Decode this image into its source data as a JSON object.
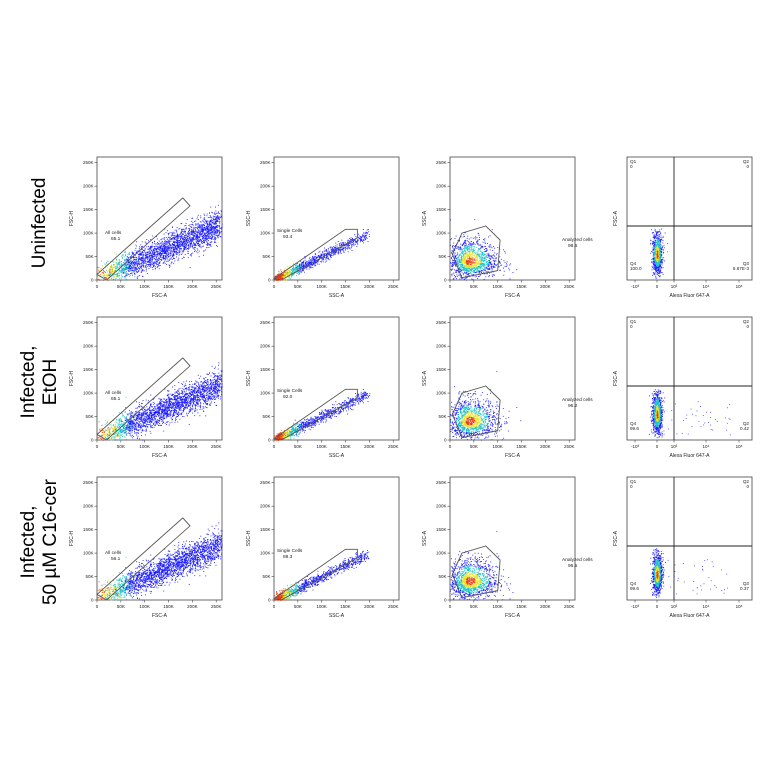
{
  "rows": [
    {
      "label_lines": [
        "Uninfected"
      ]
    },
    {
      "label_lines": [
        "Infected,",
        "EtOH"
      ]
    },
    {
      "label_lines": [
        "Infected,",
        "50 µM C16-cer"
      ]
    }
  ],
  "chart_data": [
    {
      "type": "scatter",
      "panel": "row1-col1",
      "xlabel": "FSC-A",
      "ylabel": "FSC-H",
      "xticks": [
        "0",
        "50K",
        "100K",
        "150K",
        "200K",
        "250K"
      ],
      "yticks": [
        "0",
        "50K",
        "100K",
        "150K",
        "200K",
        "250K"
      ],
      "xlim": [
        0,
        262144
      ],
      "ylim": [
        0,
        262144
      ],
      "gate": {
        "name": "All cells",
        "value": "65.1"
      },
      "gate_polygon": [
        [
          0,
          12000
        ],
        [
          180000,
          175000
        ],
        [
          195000,
          158000
        ],
        [
          20000,
          0
        ]
      ],
      "density": "blue-to-red pseudocolor"
    },
    {
      "type": "scatter",
      "panel": "row1-col2",
      "xlabel": "SSC-A",
      "ylabel": "SSC-H",
      "xticks": [
        "0",
        "50K",
        "100K",
        "150K",
        "200K",
        "250K"
      ],
      "yticks": [
        "0",
        "50K",
        "100K",
        "150K",
        "200K",
        "250K"
      ],
      "xlim": [
        0,
        262144
      ],
      "ylim": [
        0,
        262144
      ],
      "gate": {
        "name": "Single Cells",
        "value": "93.4"
      },
      "gate_polygon": [
        [
          0,
          3000
        ],
        [
          150000,
          108000
        ],
        [
          175000,
          108000
        ],
        [
          175000,
          90000
        ],
        [
          15000,
          0
        ]
      ],
      "density": "blue-to-red pseudocolor"
    },
    {
      "type": "scatter",
      "panel": "row1-col3",
      "xlabel": "FSC-A",
      "ylabel": "SSC-A",
      "xticks": [
        "0",
        "50K",
        "100K",
        "150K",
        "200K",
        "250K"
      ],
      "yticks": [
        "0",
        "50K",
        "100K",
        "150K",
        "200K",
        "250K"
      ],
      "xlim": [
        0,
        262144
      ],
      "ylim": [
        0,
        262144
      ],
      "gate": {
        "name": "Analyzed cells",
        "value": "98.6"
      },
      "gate_polygon": [
        [
          5000,
          55000
        ],
        [
          25000,
          100000
        ],
        [
          75000,
          115000
        ],
        [
          105000,
          85000
        ],
        [
          100000,
          20000
        ],
        [
          25000,
          5000
        ]
      ],
      "density": "blue-to-red pseudocolor"
    },
    {
      "type": "scatter",
      "panel": "row1-col4",
      "xlabel": "Alexa Fluor 647-A",
      "ylabel": "FSC-A",
      "xticks": [
        "-10³",
        "0",
        "10³",
        "10⁴",
        "10⁵"
      ],
      "yticks": [],
      "quadrants": [
        {
          "name": "Q1",
          "value": "0"
        },
        {
          "name": "Q2",
          "value": "0"
        },
        {
          "name": "Q3",
          "value": "6.67E-3"
        },
        {
          "name": "Q4",
          "value": "100.0"
        }
      ]
    },
    {
      "type": "scatter",
      "panel": "row2-col1",
      "xlabel": "FSC-A",
      "ylabel": "FSC-H",
      "xticks": [
        "0",
        "50K",
        "100K",
        "150K",
        "200K",
        "250K"
      ],
      "yticks": [
        "0",
        "50K",
        "100K",
        "150K",
        "200K",
        "250K"
      ],
      "xlim": [
        0,
        262144
      ],
      "ylim": [
        0,
        262144
      ],
      "gate": {
        "name": "All cells",
        "value": "65.1"
      },
      "gate_polygon": [
        [
          0,
          12000
        ],
        [
          180000,
          175000
        ],
        [
          195000,
          158000
        ],
        [
          20000,
          0
        ]
      ],
      "density": "blue-to-red pseudocolor"
    },
    {
      "type": "scatter",
      "panel": "row2-col2",
      "xlabel": "SSC-A",
      "ylabel": "SSC-H",
      "xticks": [
        "0",
        "50K",
        "100K",
        "150K",
        "200K",
        "250K"
      ],
      "yticks": [
        "0",
        "50K",
        "100K",
        "150K",
        "200K",
        "250K"
      ],
      "xlim": [
        0,
        262144
      ],
      "ylim": [
        0,
        262144
      ],
      "gate": {
        "name": "Single Cells",
        "value": "92.0"
      },
      "gate_polygon": [
        [
          0,
          3000
        ],
        [
          150000,
          108000
        ],
        [
          175000,
          108000
        ],
        [
          175000,
          90000
        ],
        [
          15000,
          0
        ]
      ],
      "density": "blue-to-red pseudocolor"
    },
    {
      "type": "scatter",
      "panel": "row2-col3",
      "xlabel": "FSC-A",
      "ylabel": "SSC-A",
      "xticks": [
        "0",
        "50K",
        "100K",
        "150K",
        "200K",
        "250K"
      ],
      "yticks": [
        "0",
        "50K",
        "100K",
        "150K",
        "200K",
        "250K"
      ],
      "xlim": [
        0,
        262144
      ],
      "ylim": [
        0,
        262144
      ],
      "gate": {
        "name": "Analyzed cells",
        "value": "96.2"
      },
      "gate_polygon": [
        [
          5000,
          55000
        ],
        [
          25000,
          100000
        ],
        [
          75000,
          115000
        ],
        [
          105000,
          85000
        ],
        [
          100000,
          20000
        ],
        [
          25000,
          5000
        ]
      ],
      "density": "blue-to-red pseudocolor"
    },
    {
      "type": "scatter",
      "panel": "row2-col4",
      "xlabel": "Alexa Fluor 647-A",
      "ylabel": "FSC-A",
      "xticks": [
        "-10³",
        "0",
        "10³",
        "10⁴",
        "10⁵"
      ],
      "yticks": [],
      "quadrants": [
        {
          "name": "Q1",
          "value": "0"
        },
        {
          "name": "Q2",
          "value": "0"
        },
        {
          "name": "Q2",
          "value": "0.42"
        },
        {
          "name": "Q4",
          "value": "99.6"
        }
      ]
    },
    {
      "type": "scatter",
      "panel": "row3-col1",
      "xlabel": "FSC-A",
      "ylabel": "FSC-H",
      "xticks": [
        "0",
        "50K",
        "100K",
        "150K",
        "200K",
        "250K"
      ],
      "yticks": [
        "0",
        "50K",
        "100K",
        "150K",
        "200K",
        "250K"
      ],
      "xlim": [
        0,
        262144
      ],
      "ylim": [
        0,
        262144
      ],
      "gate": {
        "name": "All cells",
        "value": "56.1"
      },
      "gate_polygon": [
        [
          0,
          12000
        ],
        [
          180000,
          175000
        ],
        [
          195000,
          158000
        ],
        [
          20000,
          0
        ]
      ],
      "density": "blue-to-red pseudocolor"
    },
    {
      "type": "scatter",
      "panel": "row3-col2",
      "xlabel": "SSC-A",
      "ylabel": "SSC-H",
      "xticks": [
        "0",
        "50K",
        "100K",
        "150K",
        "200K",
        "250K"
      ],
      "yticks": [
        "0",
        "50K",
        "100K",
        "150K",
        "200K",
        "250K"
      ],
      "xlim": [
        0,
        262144
      ],
      "ylim": [
        0,
        262144
      ],
      "gate": {
        "name": "Single Cells",
        "value": "88.3"
      },
      "gate_polygon": [
        [
          0,
          3000
        ],
        [
          150000,
          108000
        ],
        [
          175000,
          108000
        ],
        [
          175000,
          90000
        ],
        [
          15000,
          0
        ]
      ],
      "density": "blue-to-red pseudocolor"
    },
    {
      "type": "scatter",
      "panel": "row3-col3",
      "xlabel": "FSC-A",
      "ylabel": "SSC-A",
      "xticks": [
        "0",
        "50K",
        "100K",
        "150K",
        "200K",
        "250K"
      ],
      "yticks": [
        "0",
        "50K",
        "100K",
        "150K",
        "200K",
        "250K"
      ],
      "xlim": [
        0,
        262144
      ],
      "ylim": [
        0,
        262144
      ],
      "gate": {
        "name": "Analyzed cells",
        "value": "96.5"
      },
      "gate_polygon": [
        [
          5000,
          55000
        ],
        [
          25000,
          100000
        ],
        [
          75000,
          115000
        ],
        [
          105000,
          85000
        ],
        [
          100000,
          20000
        ],
        [
          25000,
          5000
        ]
      ],
      "density": "blue-to-red pseudocolor"
    },
    {
      "type": "scatter",
      "panel": "row3-col4",
      "xlabel": "Alexa Fluor 647-A",
      "ylabel": "FSC-A",
      "xticks": [
        "-10³",
        "0",
        "10³",
        "10⁴",
        "10⁵"
      ],
      "yticks": [],
      "quadrants": [
        {
          "name": "Q1",
          "value": "0"
        },
        {
          "name": "Q2",
          "value": "0"
        },
        {
          "name": "Q3",
          "value": "0.37"
        },
        {
          "name": "Q4",
          "value": "99.6"
        }
      ]
    }
  ],
  "colors": {
    "density_low": "#1a1aff",
    "density_mid": "#19c3c3",
    "density_high": "#e8e020",
    "density_peak": "#e83a10",
    "gate": "#555555",
    "axis": "#444444"
  }
}
